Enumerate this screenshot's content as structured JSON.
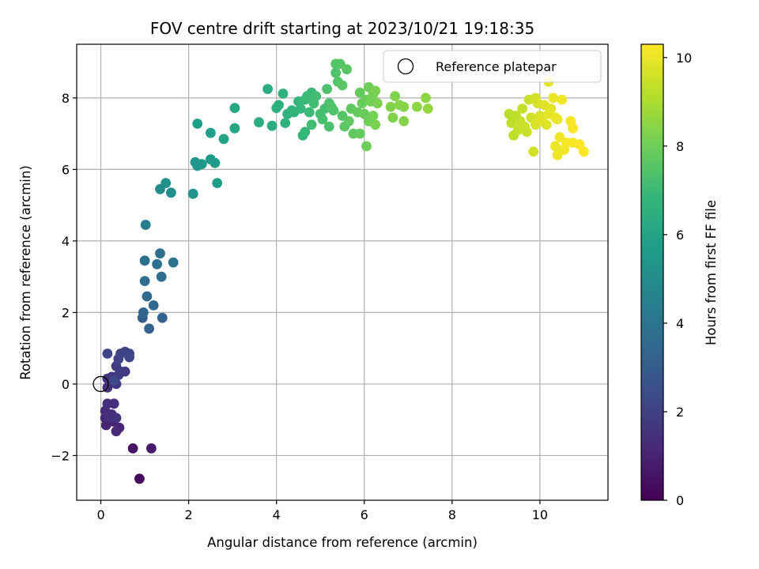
{
  "chart_data": {
    "type": "scatter",
    "title": "FOV centre drift starting at 2023/10/21 19:18:35",
    "xlabel": "Angular distance from reference (arcmin)",
    "ylabel": "Rotation from reference (arcmin)",
    "xlim": [
      -0.55,
      11.55
    ],
    "ylim": [
      -3.25,
      9.5
    ],
    "xticks": [
      0,
      2,
      4,
      6,
      8,
      10
    ],
    "yticks": [
      -2,
      0,
      2,
      4,
      6,
      8
    ],
    "xtick_labels": [
      "0",
      "2",
      "4",
      "6",
      "8",
      "10"
    ],
    "ytick_labels": [
      "−2",
      "0",
      "2",
      "4",
      "6",
      "8"
    ],
    "grid": true,
    "legend": {
      "placement": "top-right",
      "entries": [
        "Reference platepar"
      ]
    },
    "reference_point": {
      "x": 0,
      "y": 0
    },
    "colorbar": {
      "label": "Hours from first FF file",
      "range": [
        0,
        10.3
      ],
      "ticks": [
        0,
        2,
        4,
        6,
        8,
        10
      ],
      "tick_labels": [
        "0",
        "2",
        "4",
        "6",
        "8",
        "10"
      ],
      "colormap": [
        "#440154",
        "#482878",
        "#3e4989",
        "#31688e",
        "#26828e",
        "#1f9e89",
        "#35b779",
        "#6ece58",
        "#b5de2b",
        "#fde725"
      ]
    },
    "series": [
      {
        "points": [
          [
            0.88,
            -2.65,
            0.2
          ],
          [
            0.73,
            -1.8,
            0.5
          ],
          [
            1.15,
            -1.8,
            0.7
          ],
          [
            0.12,
            -1.15,
            1.0
          ],
          [
            0.42,
            -1.22,
            1.1
          ],
          [
            0.35,
            -1.32,
            1.2
          ],
          [
            0.28,
            -1.05,
            1.1
          ],
          [
            0.1,
            -0.95,
            1.2
          ],
          [
            0.25,
            -0.85,
            1.3
          ],
          [
            0.1,
            -0.75,
            1.3
          ],
          [
            0.15,
            -0.55,
            1.4
          ],
          [
            0.3,
            -0.55,
            1.4
          ],
          [
            0.2,
            -0.9,
            1.4
          ],
          [
            0.35,
            -0.95,
            1.5
          ],
          [
            0.15,
            -0.1,
            1.5
          ],
          [
            0.15,
            0.15,
            1.6
          ],
          [
            0.25,
            0.2,
            1.6
          ],
          [
            0.35,
            0.0,
            1.7
          ],
          [
            0.4,
            0.25,
            1.7
          ],
          [
            0.45,
            0.35,
            1.8
          ],
          [
            0.55,
            0.35,
            1.8
          ],
          [
            0.35,
            0.5,
            1.9
          ],
          [
            0.4,
            0.7,
            2.0
          ],
          [
            0.45,
            0.85,
            2.0
          ],
          [
            0.55,
            0.9,
            2.1
          ],
          [
            0.65,
            0.85,
            2.1
          ],
          [
            0.65,
            0.75,
            2.2
          ],
          [
            0.15,
            0.85,
            2.2
          ],
          [
            0.3,
            0.1,
            2.3
          ],
          [
            0.95,
            1.85,
            3.1
          ],
          [
            1.1,
            1.55,
            3.2
          ],
          [
            1.4,
            1.85,
            3.3
          ],
          [
            0.97,
            2.0,
            3.4
          ],
          [
            1.2,
            2.2,
            3.4
          ],
          [
            1.05,
            2.45,
            3.5
          ],
          [
            1.0,
            2.88,
            3.6
          ],
          [
            1.38,
            3.0,
            3.6
          ],
          [
            1.28,
            3.35,
            3.7
          ],
          [
            1.0,
            3.45,
            3.8
          ],
          [
            1.35,
            3.65,
            3.8
          ],
          [
            1.65,
            3.4,
            3.9
          ],
          [
            1.02,
            4.45,
            4.3
          ],
          [
            1.35,
            5.45,
            5.0
          ],
          [
            1.6,
            5.35,
            5.1
          ],
          [
            1.48,
            5.62,
            5.2
          ],
          [
            2.1,
            5.32,
            5.3
          ],
          [
            2.15,
            6.2,
            5.4
          ],
          [
            2.2,
            6.1,
            5.5
          ],
          [
            2.3,
            6.15,
            5.5
          ],
          [
            2.5,
            6.28,
            5.6
          ],
          [
            2.6,
            6.18,
            5.6
          ],
          [
            2.65,
            5.62,
            5.7
          ],
          [
            2.2,
            7.28,
            5.8
          ],
          [
            2.5,
            7.02,
            5.8
          ],
          [
            2.8,
            6.85,
            6.0
          ],
          [
            3.05,
            7.15,
            6.1
          ],
          [
            3.05,
            7.72,
            6.1
          ],
          [
            3.6,
            7.32,
            6.3
          ],
          [
            3.8,
            8.25,
            6.4
          ],
          [
            3.9,
            7.22,
            6.4
          ],
          [
            4.0,
            7.72,
            6.5
          ],
          [
            4.05,
            7.8,
            6.5
          ],
          [
            4.15,
            8.12,
            6.6
          ],
          [
            4.2,
            7.3,
            6.6
          ],
          [
            4.25,
            7.55,
            6.6
          ],
          [
            4.35,
            7.65,
            6.7
          ],
          [
            4.4,
            7.6,
            6.7
          ],
          [
            4.5,
            7.9,
            6.8
          ],
          [
            4.55,
            7.7,
            6.8
          ],
          [
            4.6,
            6.95,
            6.8
          ],
          [
            4.65,
            7.05,
            6.9
          ],
          [
            4.65,
            7.95,
            6.9
          ],
          [
            4.7,
            8.05,
            7.0
          ],
          [
            4.75,
            7.6,
            7.0
          ],
          [
            4.8,
            8.15,
            7.0
          ],
          [
            4.8,
            7.25,
            7.1
          ],
          [
            4.85,
            7.85,
            7.1
          ],
          [
            4.9,
            8.05,
            7.1
          ],
          [
            5.0,
            7.55,
            7.2
          ],
          [
            5.05,
            7.4,
            7.2
          ],
          [
            5.1,
            7.7,
            7.2
          ],
          [
            5.15,
            8.25,
            7.3
          ],
          [
            5.2,
            7.85,
            7.3
          ],
          [
            5.2,
            7.2,
            7.3
          ],
          [
            5.25,
            7.75,
            7.4
          ],
          [
            5.3,
            7.65,
            7.4
          ],
          [
            5.35,
            8.7,
            7.4
          ],
          [
            5.35,
            8.95,
            7.5
          ],
          [
            5.4,
            8.45,
            7.5
          ],
          [
            5.45,
            8.95,
            7.5
          ],
          [
            5.5,
            7.5,
            7.5
          ],
          [
            5.5,
            8.35,
            7.6
          ],
          [
            5.55,
            7.2,
            7.6
          ],
          [
            5.6,
            8.8,
            7.6
          ],
          [
            5.65,
            7.35,
            7.7
          ],
          [
            5.7,
            7.7,
            7.7
          ],
          [
            5.75,
            7.0,
            7.7
          ],
          [
            5.85,
            7.6,
            7.8
          ],
          [
            5.9,
            8.15,
            7.8
          ],
          [
            5.9,
            7.0,
            7.8
          ],
          [
            5.95,
            7.85,
            7.9
          ],
          [
            6.0,
            7.55,
            7.9
          ],
          [
            6.05,
            7.95,
            7.9
          ],
          [
            6.05,
            6.65,
            8.0
          ],
          [
            6.1,
            8.3,
            8.0
          ],
          [
            6.1,
            7.35,
            8.0
          ],
          [
            6.15,
            7.9,
            8.1
          ],
          [
            6.2,
            8.1,
            8.1
          ],
          [
            6.2,
            7.5,
            8.1
          ],
          [
            6.25,
            7.25,
            8.2
          ],
          [
            6.25,
            8.2,
            8.2
          ],
          [
            6.3,
            7.85,
            8.2
          ],
          [
            6.6,
            7.75,
            8.3
          ],
          [
            6.65,
            7.45,
            8.3
          ],
          [
            6.7,
            8.05,
            8.3
          ],
          [
            6.8,
            7.8,
            8.4
          ],
          [
            6.9,
            7.35,
            8.4
          ],
          [
            6.9,
            7.75,
            8.4
          ],
          [
            7.2,
            7.75,
            8.5
          ],
          [
            7.4,
            8.0,
            8.5
          ],
          [
            7.45,
            7.7,
            8.6
          ],
          [
            9.3,
            7.55,
            9.2
          ],
          [
            9.35,
            7.3,
            9.3
          ],
          [
            9.4,
            6.95,
            9.3
          ],
          [
            9.45,
            7.5,
            9.3
          ],
          [
            9.5,
            7.1,
            9.4
          ],
          [
            9.55,
            7.35,
            9.4
          ],
          [
            9.6,
            7.7,
            9.4
          ],
          [
            9.65,
            7.2,
            9.5
          ],
          [
            9.7,
            7.05,
            9.5
          ],
          [
            9.75,
            7.95,
            9.5
          ],
          [
            9.8,
            7.45,
            9.6
          ],
          [
            9.85,
            6.5,
            9.6
          ],
          [
            9.9,
            8.0,
            9.6
          ],
          [
            9.9,
            7.25,
            9.7
          ],
          [
            9.95,
            7.85,
            9.7
          ],
          [
            10.0,
            7.5,
            9.7
          ],
          [
            10.05,
            7.35,
            9.8
          ],
          [
            10.1,
            7.8,
            9.8
          ],
          [
            10.15,
            7.25,
            9.8
          ],
          [
            10.2,
            8.45,
            9.9
          ],
          [
            10.2,
            7.55,
            9.9
          ],
          [
            10.25,
            7.7,
            9.9
          ],
          [
            10.3,
            8.0,
            10.0
          ],
          [
            10.35,
            7.45,
            10.0
          ],
          [
            10.35,
            6.65,
            10.0
          ],
          [
            10.4,
            7.4,
            10.0
          ],
          [
            10.4,
            6.4,
            10.1
          ],
          [
            10.45,
            6.9,
            10.1
          ],
          [
            10.5,
            7.95,
            10.1
          ],
          [
            10.55,
            6.55,
            10.1
          ],
          [
            10.6,
            6.75,
            10.2
          ],
          [
            10.7,
            7.35,
            10.2
          ],
          [
            10.75,
            6.75,
            10.2
          ],
          [
            10.75,
            7.15,
            10.2
          ],
          [
            10.9,
            6.7,
            10.3
          ],
          [
            11.0,
            6.5,
            10.3
          ]
        ]
      }
    ]
  }
}
